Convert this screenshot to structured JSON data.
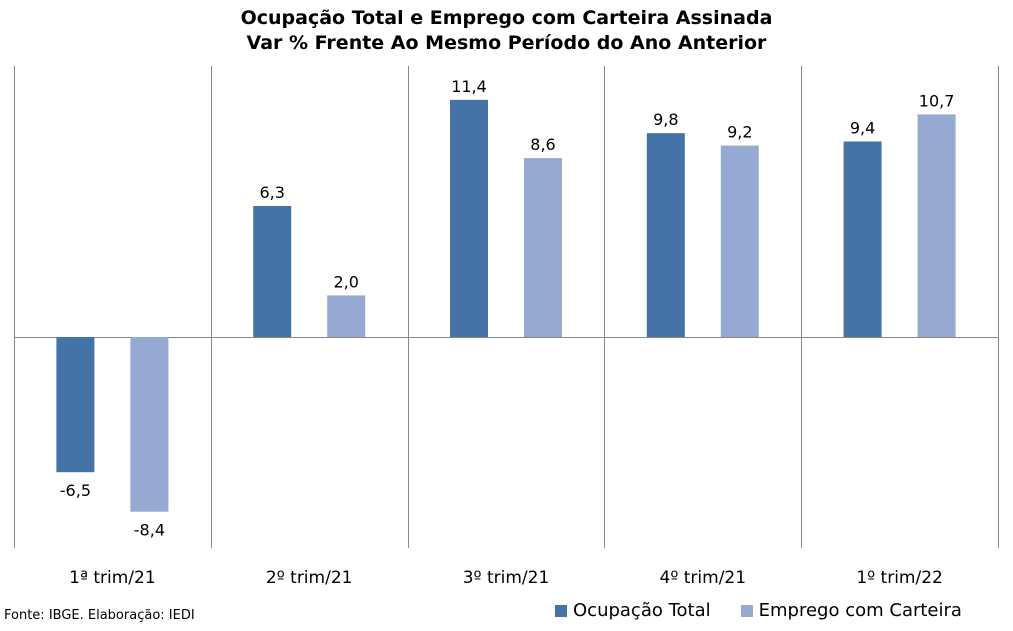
{
  "title_line1": "Ocupação Total e Emprego com Carteira Assinada",
  "title_line2": "Var % Frente Ao Mesmo Período do Ano Anterior",
  "source": "Fonte: IBGE. Elaboração: IEDI",
  "colors": {
    "series1": "#4572A7",
    "series2": "#95A9D2",
    "grid": "#888888"
  },
  "chart_data": {
    "type": "bar",
    "title": "Ocupação Total e Emprego com Carteira Assinada — Var % Frente Ao Mesmo Período do Ano Anterior",
    "categories": [
      "1ª trim/21",
      "2º trim/21",
      "3º trim/21",
      "4º trim/21",
      "1º trim/22"
    ],
    "series": [
      {
        "name": "Ocupação Total",
        "values": [
          -6.5,
          6.3,
          11.4,
          9.8,
          9.4
        ],
        "labels": [
          "-6,5",
          "6,3",
          "11,4",
          "9,8",
          "9,4"
        ]
      },
      {
        "name": "Emprego com Carteira",
        "values": [
          -8.4,
          2.0,
          8.6,
          9.2,
          10.7
        ],
        "labels": [
          "-8,4",
          "2,0",
          "8,6",
          "9,2",
          "10,7"
        ]
      }
    ],
    "xlabel": "",
    "ylabel": "",
    "ylim": [
      -10,
      13
    ],
    "grid": "vertical category separators",
    "legend": "bottom-right"
  }
}
